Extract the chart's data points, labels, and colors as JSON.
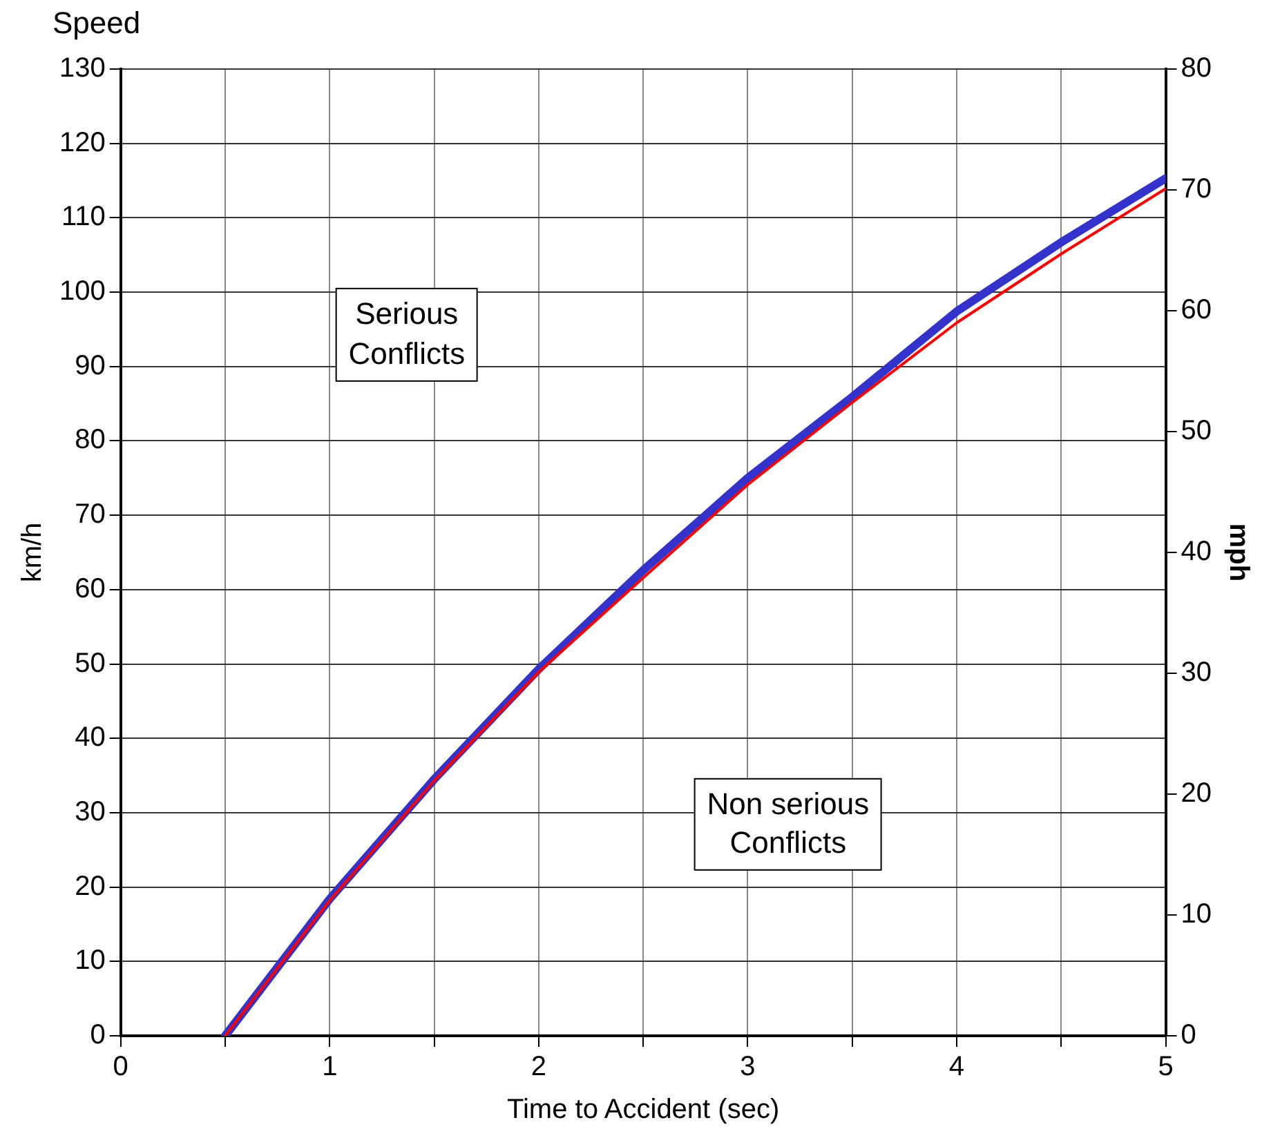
{
  "chart_data": {
    "type": "line",
    "title": "Speed",
    "xlabel": "Time to Accident (sec)",
    "ylabel": "km/h",
    "y2label": "mph",
    "x": [
      0.5,
      1,
      1.5,
      2,
      2.5,
      3,
      3.5,
      4,
      4.5,
      5
    ],
    "series": [
      {
        "color": "#ff0000",
        "axis": "y2",
        "values": [
          0,
          11.2,
          21.1,
          30.1,
          37.9,
          45.6,
          52.4,
          59.0,
          64.7,
          70.1
        ]
      },
      {
        "color": "#3333cc",
        "values": [
          0,
          18.4,
          34.5,
          49.3,
          62.6,
          75,
          85.9,
          97.4,
          106.7,
          115.3
        ]
      }
    ],
    "xlim": [
      0,
      5
    ],
    "xticks": [
      0,
      {
        "value": 0.5,
        "label": null
      },
      1,
      {
        "value": 1.5,
        "label": null
      },
      2,
      {
        "value": 2.5,
        "label": null
      },
      3,
      {
        "value": 3.5,
        "label": null
      },
      4,
      {
        "value": 4.5,
        "label": null
      },
      5
    ],
    "ylim": [
      0,
      130
    ],
    "yticks": [
      0,
      10,
      20,
      30,
      40,
      50,
      60,
      70,
      80,
      90,
      100,
      110,
      120,
      130
    ],
    "y2lim": [
      0,
      80
    ],
    "y2ticks": [
      0,
      10,
      20,
      30,
      40,
      50,
      60,
      70,
      80
    ],
    "grid": true,
    "legend": false,
    "marker": "none",
    "line_style": "solid",
    "annotations": [
      "Serious Conflicts",
      "Non serious Conflicts"
    ]
  }
}
